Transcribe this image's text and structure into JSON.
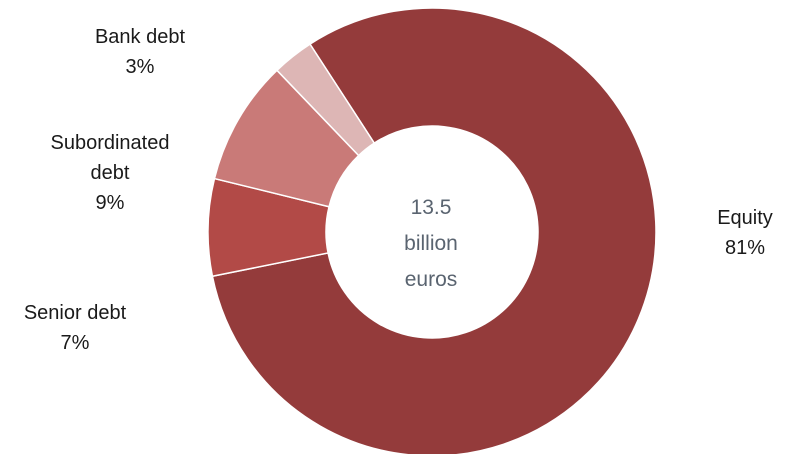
{
  "chart_data": {
    "type": "pie",
    "subtype": "donut",
    "title": "",
    "center_label": [
      "13.5",
      "billion",
      "euros"
    ],
    "slices": [
      {
        "label": "Equity",
        "label_lines": [
          "Equity"
        ],
        "value": 81,
        "value_label": "81%",
        "color": "#943B3B"
      },
      {
        "label": "Senior debt",
        "label_lines": [
          "Senior debt"
        ],
        "value": 7,
        "value_label": "7%",
        "color": "#B24A47"
      },
      {
        "label": "Subordinated debt",
        "label_lines": [
          "Subordinated",
          "debt"
        ],
        "value": 9,
        "value_label": "9%",
        "color": "#C97A78"
      },
      {
        "label": "Bank debt",
        "label_lines": [
          "Bank debt"
        ],
        "value": 3,
        "value_label": "3%",
        "color": "#DDB6B5"
      }
    ]
  }
}
